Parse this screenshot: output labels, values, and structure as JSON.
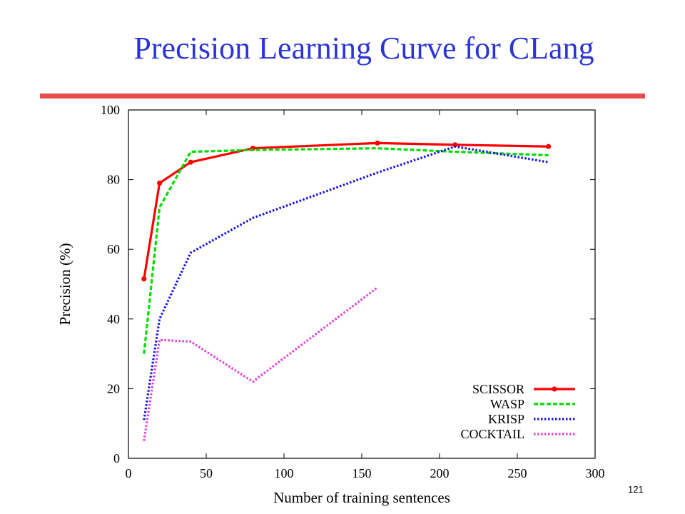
{
  "slide": {
    "title": "Precision Learning Curve for CLang",
    "page_number": "121",
    "colors": {
      "title": "#2b35d6",
      "rule": "#e84c4c"
    }
  },
  "chart_data": {
    "type": "line",
    "title": "",
    "xlabel": "Number of training sentences",
    "ylabel": "Precision (%)",
    "xlim": [
      0,
      300
    ],
    "ylim": [
      0,
      100
    ],
    "xticks": [
      0,
      50,
      100,
      150,
      200,
      250,
      300
    ],
    "yticks": [
      0,
      20,
      40,
      60,
      80,
      100
    ],
    "grid": false,
    "legend_position": "bottom-right",
    "series": [
      {
        "name": "SCISSOR",
        "color": "#ff0000",
        "style": "solid",
        "markers": true,
        "x": [
          10,
          20,
          40,
          80,
          160,
          210,
          270
        ],
        "y": [
          51.5,
          79,
          85,
          89,
          90.5,
          90,
          89.5
        ]
      },
      {
        "name": "WASP",
        "color": "#00dd00",
        "style": "dashed",
        "markers": false,
        "x": [
          10,
          20,
          40,
          80,
          160,
          210,
          270
        ],
        "y": [
          30,
          72,
          88,
          88.5,
          89,
          88,
          87
        ]
      },
      {
        "name": "KRISP",
        "color": "#1515e0",
        "style": "dotted",
        "markers": false,
        "x": [
          10,
          20,
          40,
          80,
          160,
          210,
          270
        ],
        "y": [
          11,
          40,
          59,
          69,
          82,
          89.5,
          85
        ]
      },
      {
        "name": "COCKTAIL",
        "color": "#e040e0",
        "style": "dotted",
        "markers": false,
        "x": [
          10,
          20,
          40,
          80,
          160
        ],
        "y": [
          5,
          34,
          33.5,
          22,
          49
        ]
      }
    ]
  }
}
